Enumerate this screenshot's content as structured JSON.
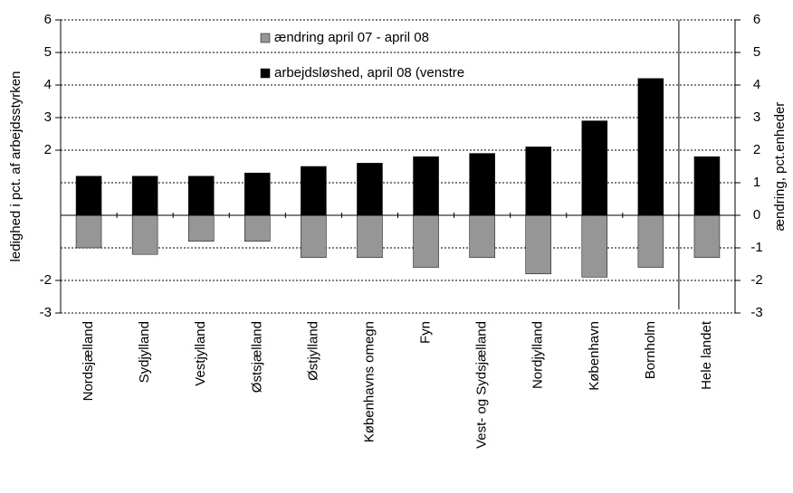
{
  "chart_data": {
    "type": "bar",
    "categories": [
      "Nordsjælland",
      "Sydjylland",
      "Vestjylland",
      "Østsjælland",
      "Østjylland",
      "Københavns omegn",
      "Fyn",
      "Vest- og Sydsjælland",
      "Nordjylland",
      "København",
      "Bornholm",
      "Hele landet"
    ],
    "series": [
      {
        "name": "ændring april 07 - april 08",
        "color": "#969696",
        "axis": "y2",
        "values": [
          -1.0,
          -1.2,
          -0.8,
          -0.8,
          -1.3,
          -1.3,
          -1.6,
          -1.3,
          -1.8,
          -1.9,
          -1.6,
          -1.3
        ]
      },
      {
        "name": "arbejdsløshed, april 08 (venstre",
        "color": "#000000",
        "values": [
          1.2,
          1.2,
          1.2,
          1.3,
          1.5,
          1.6,
          1.8,
          1.9,
          2.1,
          2.9,
          4.2,
          1.8
        ]
      }
    ],
    "ylabel": "ledighed i pct. af arbejdsstyrken",
    "y2label": "ændring, pct.enheder",
    "ylim": [
      -3,
      6
    ],
    "yticks": [
      -3,
      -2,
      2,
      3,
      4,
      5,
      6
    ],
    "y2lim": [
      -3,
      6
    ],
    "y2ticks": [
      -3,
      -2,
      -1,
      0,
      1,
      2,
      3,
      4,
      5,
      6
    ],
    "grid": true
  }
}
